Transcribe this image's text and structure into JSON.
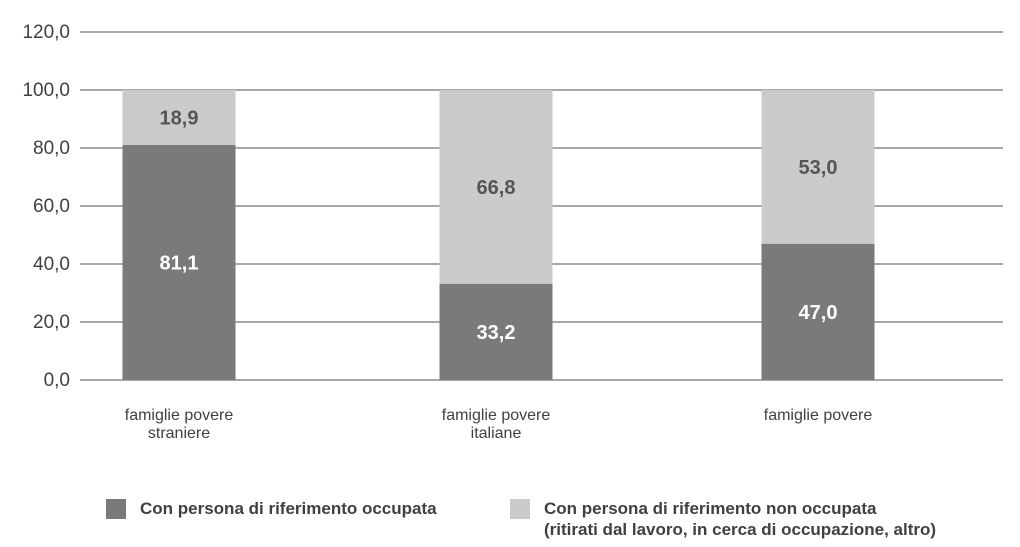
{
  "chart_data": {
    "type": "bar",
    "stacked": true,
    "categories": [
      [
        "famiglie povere",
        "straniere"
      ],
      [
        "famiglie povere",
        "italiane"
      ],
      [
        "famiglie povere"
      ]
    ],
    "series": [
      {
        "name": "Con persona di riferimento occupata",
        "values": [
          81.1,
          33.2,
          47.0
        ],
        "labels": [
          "81,1",
          "33,2",
          "47,0"
        ],
        "color": "#7a7a7c",
        "label_color": "#ffffff"
      },
      {
        "name": "Con persona di riferimento non occupata (ritirati dal lavoro, in cerca di occupazione, altro)",
        "values": [
          18.9,
          66.8,
          53.0
        ],
        "labels": [
          "18,9",
          "66,8",
          "53,0"
        ],
        "color": "#cbcbcc",
        "label_color": "#555555"
      }
    ],
    "y_ticks": [
      "0,0",
      "20,0",
      "40,0",
      "60,0",
      "80,0",
      "100,0",
      "120,0"
    ],
    "ylim": [
      0,
      120
    ],
    "grid": true,
    "legend_position": "bottom"
  },
  "legend": {
    "item1": {
      "lines": [
        "Con persona di riferimento occupata"
      ]
    },
    "item2": {
      "lines": [
        "Con persona di riferimento non occupata",
        "(ritirati dal lavoro, in cerca di occupazione, altro)"
      ]
    }
  },
  "colors": {
    "grid": "#8c8c8c",
    "axis_text": "#404040"
  }
}
